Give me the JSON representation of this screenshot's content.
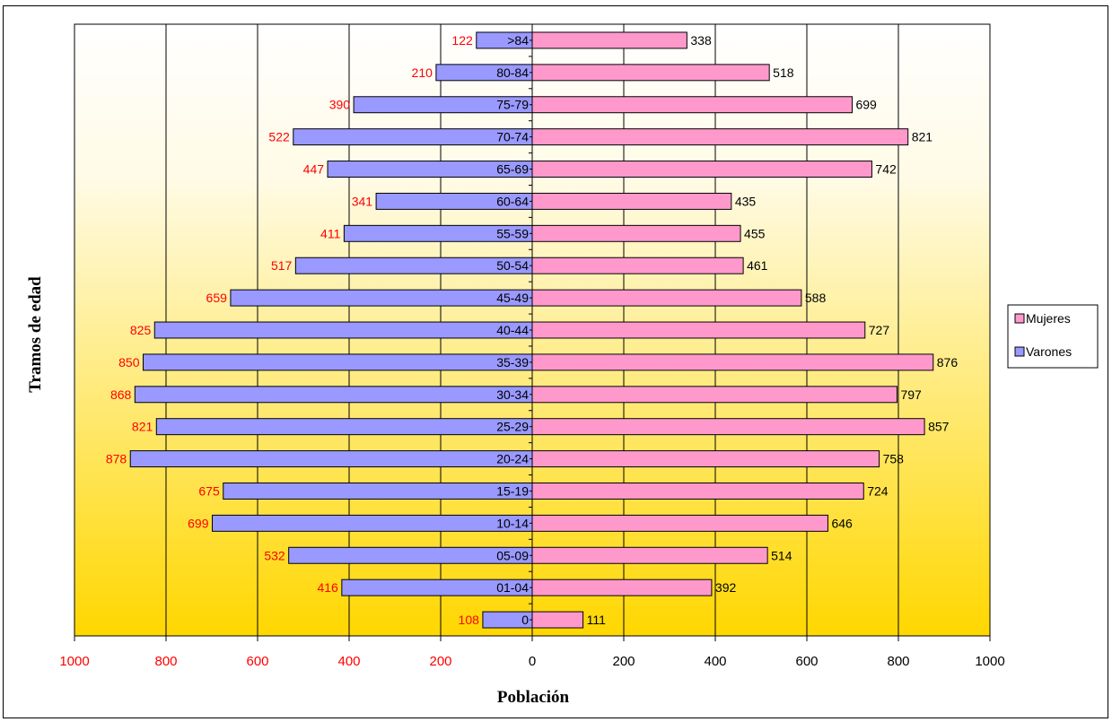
{
  "chart_data": {
    "type": "bar",
    "orientation": "horizontal",
    "subtype": "population-pyramid",
    "title": "",
    "xlabel": "Población",
    "ylabel": "Tramos de edad",
    "xlim": [
      -1000,
      1000
    ],
    "x_ticks": [
      -1000,
      -800,
      -600,
      -400,
      -200,
      0,
      200,
      400,
      600,
      800,
      1000
    ],
    "x_tick_labels": [
      "1000",
      "800",
      "600",
      "400",
      "200",
      "0",
      "200",
      "400",
      "600",
      "800",
      "1000"
    ],
    "categories": [
      "0",
      "01-04",
      "05-09",
      "10-14",
      "15-19",
      "20-24",
      "25-29",
      "30-34",
      "35-39",
      "40-44",
      "45-49",
      "50-54",
      "55-59",
      "60-64",
      "65-69",
      "70-74",
      "75-79",
      "80-84",
      ">84"
    ],
    "series": [
      {
        "name": "Varones",
        "color": "#9999ff",
        "values": [
          108,
          416,
          532,
          699,
          675,
          878,
          821,
          868,
          850,
          825,
          659,
          517,
          411,
          341,
          447,
          522,
          390,
          210,
          122
        ]
      },
      {
        "name": "Mujeres",
        "color": "#ff99cc",
        "values": [
          111,
          392,
          514,
          646,
          724,
          758,
          857,
          797,
          876,
          727,
          588,
          461,
          455,
          435,
          742,
          821,
          699,
          518,
          338
        ]
      }
    ],
    "legend": {
      "placement": "right",
      "entries": [
        "Mujeres",
        "Varones"
      ]
    },
    "grid": {
      "vertical": true,
      "horizontal": false
    },
    "colors": {
      "left_label": "#ff0000",
      "right_label": "#000000",
      "left_tick": "#ff0000",
      "right_tick": "#000000",
      "bg_top": "#ffffff",
      "bg_bottom": "#ffd700"
    }
  }
}
